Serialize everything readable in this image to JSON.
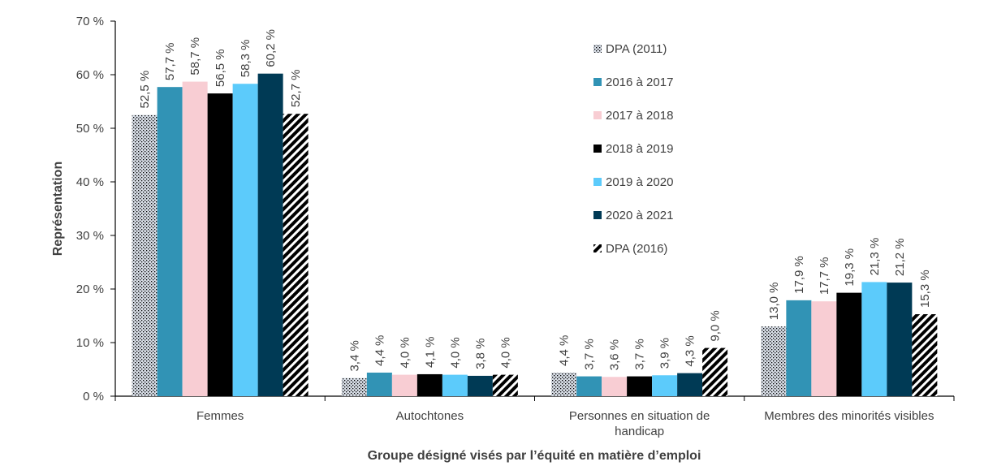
{
  "chart_data": {
    "type": "bar",
    "title": "",
    "xlabel": "Groupe désigné visés par l’équité en matière d’emploi",
    "ylabel": "Représentation",
    "ylim": [
      0,
      70
    ],
    "yticks": [
      0,
      10,
      20,
      30,
      40,
      50,
      60,
      70
    ],
    "ytick_labels": [
      "0 %",
      "10 %",
      "20 %",
      "30 %",
      "40 %",
      "50 %",
      "60 %",
      "70 %"
    ],
    "categories": [
      [
        "Femmes"
      ],
      [
        "Autochtones"
      ],
      [
        "Personnes en situation de",
        "handicap"
      ],
      [
        "Membres des minorités visibles"
      ]
    ],
    "series": [
      {
        "name": "DPA (2011)",
        "color": "#d6dce5",
        "pattern": "dots",
        "values": [
          52.5,
          3.4,
          4.4,
          13.0
        ],
        "labels": [
          "52,5 %",
          "3,4 %",
          "4,4 %",
          "13,0 %"
        ]
      },
      {
        "name": "2016 à 2017",
        "color": "#3193b5",
        "pattern": "solid",
        "values": [
          57.7,
          4.4,
          3.7,
          17.9
        ],
        "labels": [
          "57,7 %",
          "4,4 %",
          "3,7 %",
          "17,9 %"
        ]
      },
      {
        "name": "2017 à 2018",
        "color": "#f8cdd3",
        "pattern": "solid",
        "values": [
          58.7,
          4.0,
          3.6,
          17.7
        ],
        "labels": [
          "58,7 %",
          "4,0 %",
          "3,6 %",
          "17,7 %"
        ]
      },
      {
        "name": "2018 à 2019",
        "color": "#000000",
        "pattern": "solid",
        "values": [
          56.5,
          4.1,
          3.7,
          19.3
        ],
        "labels": [
          "56,5 %",
          "4,1 %",
          "3,7 %",
          "19,3 %"
        ]
      },
      {
        "name": "2019 à 2020",
        "color": "#5ccbfb",
        "pattern": "solid",
        "values": [
          58.3,
          4.0,
          3.9,
          21.3
        ],
        "labels": [
          "58,3 %",
          "4,0 %",
          "3,9 %",
          "21,3 %"
        ]
      },
      {
        "name": "2020 à 2021",
        "color": "#003a55",
        "pattern": "solid",
        "values": [
          60.2,
          3.8,
          4.3,
          21.2
        ],
        "labels": [
          "60,2 %",
          "3,8 %",
          "4,3 %",
          "21,2 %"
        ]
      },
      {
        "name": "DPA (2016)",
        "color": "#000000",
        "pattern": "diagonal",
        "values": [
          52.7,
          4.0,
          9.0,
          15.3
        ],
        "labels": [
          "52,7 %",
          "4,0 %",
          "9,0 %",
          "15,3 %"
        ]
      }
    ],
    "legend_position": "right, inside plot",
    "grid": false
  }
}
